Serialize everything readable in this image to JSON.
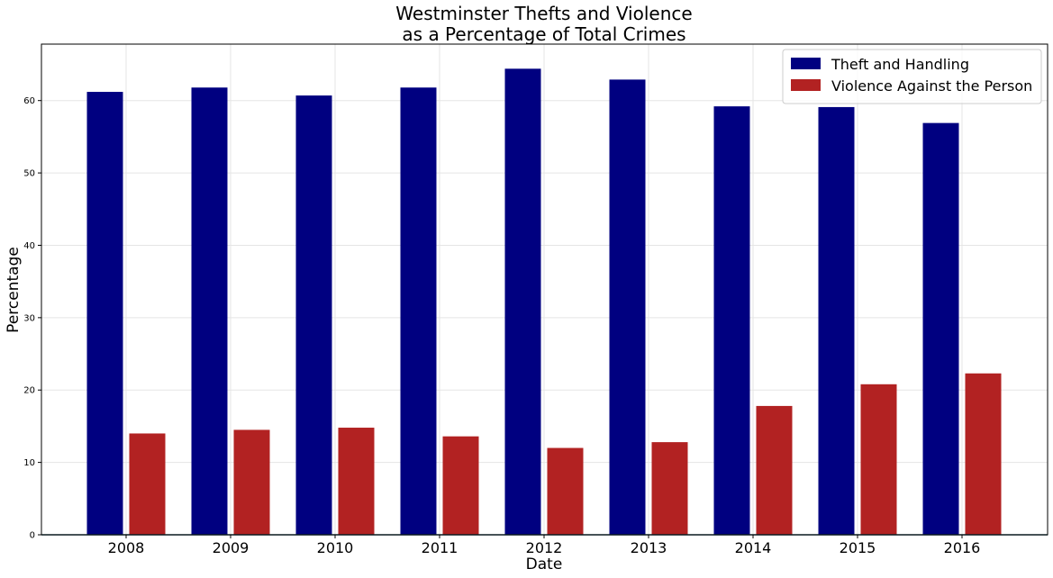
{
  "chart_data": {
    "type": "bar",
    "title_line1": "Westminster Thefts and Violence",
    "title_line2": "as a Percentage of Total Crimes",
    "xlabel": "Date",
    "ylabel": "Percentage",
    "categories": [
      "2008",
      "2009",
      "2010",
      "2011",
      "2012",
      "2013",
      "2014",
      "2015",
      "2016"
    ],
    "series": [
      {
        "name": "Theft and Handling",
        "color": "#000080",
        "values": [
          61.2,
          61.8,
          60.7,
          61.8,
          64.4,
          62.9,
          59.2,
          59.1,
          56.9
        ]
      },
      {
        "name": "Violence Against the Person",
        "color": "#b22222",
        "values": [
          14.0,
          14.5,
          14.8,
          13.6,
          12.0,
          12.8,
          17.8,
          20.8,
          22.3
        ]
      }
    ],
    "ylim": [
      0,
      67.8
    ],
    "yticks": [
      0,
      10,
      20,
      30,
      40,
      50,
      60
    ],
    "grid": true,
    "legend_position": "top-right"
  }
}
